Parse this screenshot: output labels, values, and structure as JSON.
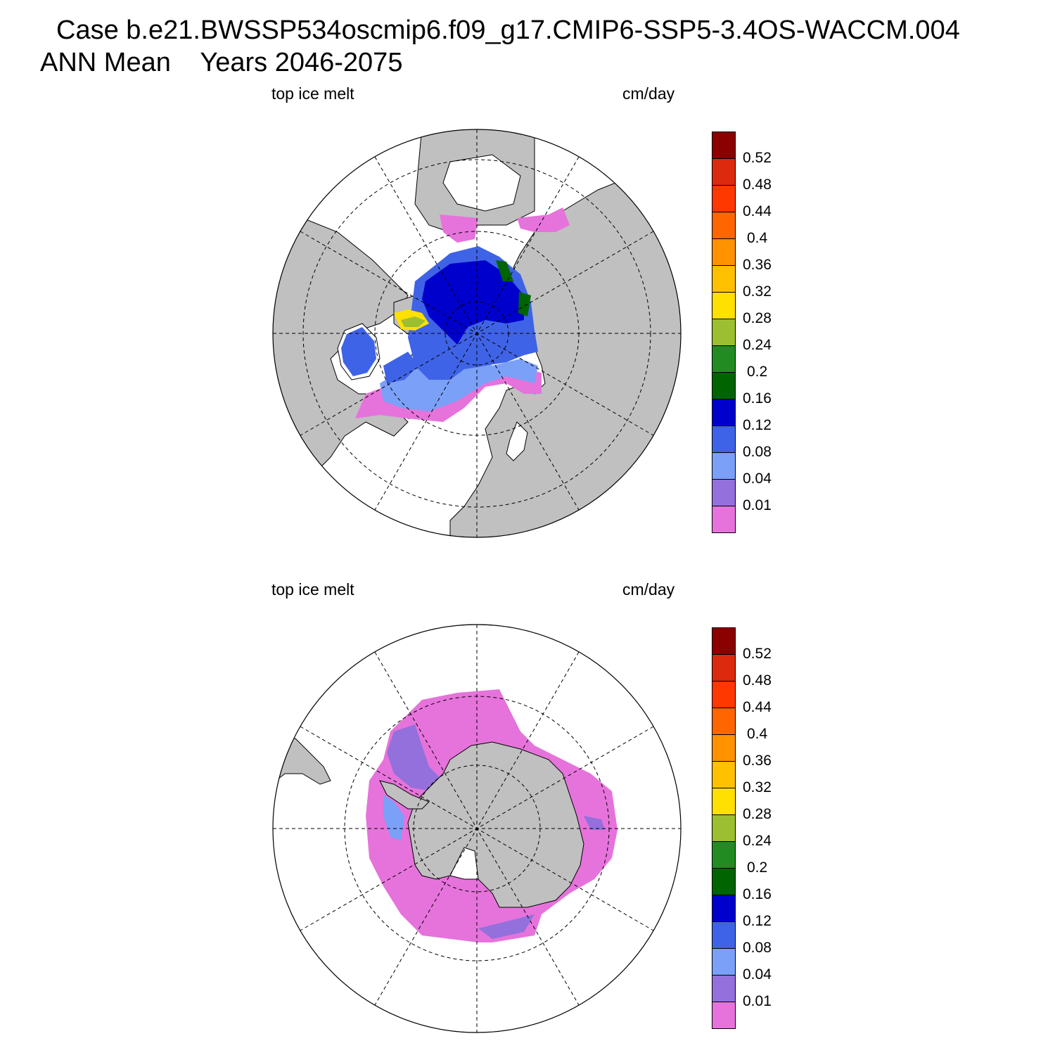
{
  "title_line1": "Case b.e21.BWSSP534oscmip6.f09_g17.CMIP6-SSP5-3.4OS-WACCM.004",
  "title_line2": "ANN Mean    Years 2046-2075",
  "colors": {
    "land": "#c0c0c0",
    "coast": "#000000",
    "grid": "#000000"
  },
  "colorbar": {
    "levels": [
      "0.52",
      "0.48",
      "0.44",
      "0.4",
      "0.36",
      "0.32",
      "0.28",
      "0.24",
      "0.2",
      "0.16",
      "0.12",
      "0.08",
      "0.04",
      "0.01"
    ],
    "colors_top_to_bottom": [
      "#8b0000",
      "#dc2a0e",
      "#ff3800",
      "#ff6600",
      "#ff9200",
      "#ffc000",
      "#ffe000",
      "#9bbf31",
      "#228b22",
      "#006400",
      "#0000cd",
      "#3f63e6",
      "#7aa0f7",
      "#9370db",
      "#e673db"
    ]
  },
  "panels": [
    {
      "id": "north",
      "variable": "top ice melt",
      "units": "cm/day"
    },
    {
      "id": "south",
      "variable": "top ice melt",
      "units": "cm/day"
    }
  ]
}
